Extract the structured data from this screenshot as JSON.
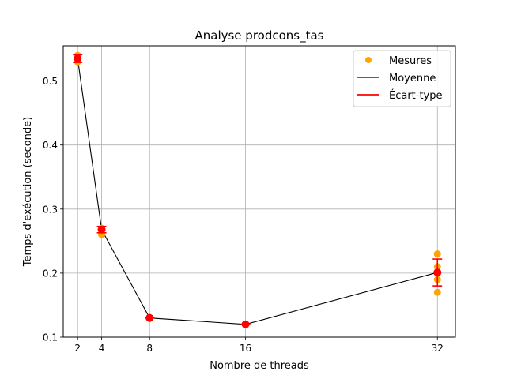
{
  "chart_data": {
    "type": "scatter",
    "title": "Analyse prodcons_tas",
    "xlabel": "Nombre de threads",
    "ylabel": "Temps d'exécution (seconde)",
    "xticks": [
      2,
      4,
      8,
      16,
      32
    ],
    "yticks": [
      0.1,
      0.2,
      0.3,
      0.4,
      0.5
    ],
    "xlim": [
      0.8,
      33.5
    ],
    "ylim": [
      0.1,
      0.555
    ],
    "grid": true,
    "legend_position": "top-right",
    "legend": {
      "measures": "Mesures",
      "mean": "Moyenne",
      "std": "Écart-type"
    },
    "colors": {
      "measures": "#ffa500",
      "mean": "#000000",
      "std": "#ff0000",
      "grid": "#b0b0b0"
    },
    "measures": [
      {
        "x": 2,
        "y": 0.54
      },
      {
        "x": 2,
        "y": 0.53
      },
      {
        "x": 4,
        "y": 0.27
      },
      {
        "x": 4,
        "y": 0.26
      },
      {
        "x": 8,
        "y": 0.13
      },
      {
        "x": 16,
        "y": 0.12
      },
      {
        "x": 32,
        "y": 0.23
      },
      {
        "x": 32,
        "y": 0.21
      },
      {
        "x": 32,
        "y": 0.19
      },
      {
        "x": 32,
        "y": 0.17
      }
    ],
    "mean_series": {
      "x": [
        2,
        4,
        8,
        16,
        32
      ],
      "y": [
        0.535,
        0.268,
        0.13,
        0.12,
        0.201
      ]
    },
    "std_series": {
      "x": [
        2,
        4,
        8,
        16,
        32
      ],
      "y": [
        0.535,
        0.268,
        0.13,
        0.12,
        0.201
      ],
      "err": [
        0.006,
        0.005,
        0.0,
        0.0,
        0.021
      ]
    }
  }
}
